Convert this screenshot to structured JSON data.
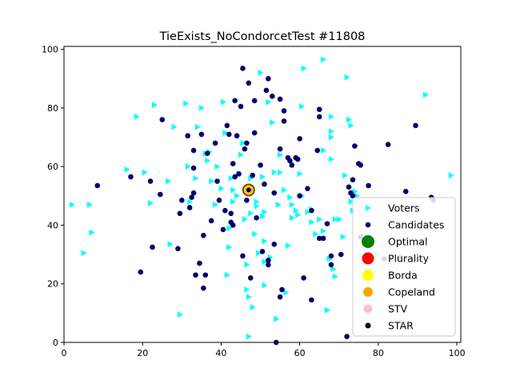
{
  "chart_data": {
    "type": "scatter",
    "title": "TieExists_NoCondorcetTest #11808",
    "xlabel": "",
    "ylabel": "",
    "xlim": [
      0,
      101
    ],
    "ylim": [
      0,
      101
    ],
    "xticks": [
      "0",
      "20",
      "40",
      "60",
      "80",
      "100"
    ],
    "yticks": [
      "0",
      "20",
      "40",
      "60",
      "80",
      "100"
    ],
    "grid": false,
    "legend_position": "lower-right",
    "series": [
      {
        "name": "Voters",
        "marker": "triangle-right",
        "color": "#00ffff",
        "points": [
          [
            2,
            47
          ],
          [
            5,
            30.5
          ],
          [
            6.5,
            47
          ],
          [
            7,
            37.5
          ],
          [
            16,
            59
          ],
          [
            18.5,
            77
          ],
          [
            20.5,
            58
          ],
          [
            22,
            47.5
          ],
          [
            23,
            81
          ],
          [
            26.5,
            55
          ],
          [
            27,
            33.5
          ],
          [
            28,
            73.5
          ],
          [
            29.5,
            9.5
          ],
          [
            31,
            81.5
          ],
          [
            31.5,
            60
          ],
          [
            32,
            48
          ],
          [
            33.5,
            56
          ],
          [
            34,
            73.5
          ],
          [
            35,
            80
          ],
          [
            36,
            64.5
          ],
          [
            36.5,
            62
          ],
          [
            37,
            65
          ],
          [
            37.5,
            55
          ],
          [
            38.5,
            47
          ],
          [
            39,
            60
          ],
          [
            40,
            52.5
          ],
          [
            40.5,
            82
          ],
          [
            41,
            71.5
          ],
          [
            41.5,
            23
          ],
          [
            42,
            39
          ],
          [
            42,
            32.5
          ],
          [
            42.5,
            56
          ],
          [
            43,
            52
          ],
          [
            43,
            48
          ],
          [
            44,
            50
          ],
          [
            44.5,
            57.5
          ],
          [
            45,
            64
          ],
          [
            45.5,
            68
          ],
          [
            46,
            42
          ],
          [
            46.5,
            26.5
          ],
          [
            46.5,
            18
          ],
          [
            47,
            15.5
          ],
          [
            47,
            2
          ],
          [
            47.5,
            56
          ],
          [
            47.5,
            44
          ],
          [
            48,
            12
          ],
          [
            48.5,
            37
          ],
          [
            49,
            48
          ],
          [
            49,
            46.5
          ],
          [
            49.5,
            30.5
          ],
          [
            50,
            92
          ],
          [
            50.5,
            56.5
          ],
          [
            50.5,
            43
          ],
          [
            51,
            34.5
          ],
          [
            51,
            27.5
          ],
          [
            51,
            19.5
          ],
          [
            51,
            44.5
          ],
          [
            52,
            82
          ],
          [
            52.5,
            29
          ],
          [
            53,
            75
          ],
          [
            53.5,
            58
          ],
          [
            54,
            8
          ],
          [
            54.5,
            47
          ],
          [
            55,
            64
          ],
          [
            55,
            58
          ],
          [
            56,
            52
          ],
          [
            56.5,
            17
          ],
          [
            57,
            33
          ],
          [
            57.5,
            49.5
          ],
          [
            58,
            47
          ],
          [
            58,
            42.5
          ],
          [
            59,
            45
          ],
          [
            59.5,
            43.5
          ],
          [
            60,
            57.5
          ],
          [
            60.5,
            50
          ],
          [
            60.5,
            80.5
          ],
          [
            61,
            93.5
          ],
          [
            62,
            44.5
          ],
          [
            63,
            45.5
          ],
          [
            63,
            41
          ],
          [
            64,
            37
          ],
          [
            65,
            42
          ],
          [
            66,
            96.5
          ],
          [
            66,
            65.5
          ],
          [
            66,
            38
          ],
          [
            67,
            11
          ],
          [
            67.5,
            28.5
          ],
          [
            68,
            77
          ],
          [
            68,
            72
          ],
          [
            68.5,
            25
          ],
          [
            68,
            70
          ],
          [
            68,
            62.5
          ],
          [
            69,
            22.5
          ],
          [
            69,
            42
          ],
          [
            70,
            42
          ],
          [
            71,
            36
          ],
          [
            71.5,
            57
          ],
          [
            72,
            90.5
          ],
          [
            72.5,
            76
          ],
          [
            73,
            74
          ],
          [
            73,
            48
          ],
          [
            73.5,
            45
          ],
          [
            74,
            51.5
          ],
          [
            74.5,
            50
          ],
          [
            78,
            30
          ],
          [
            79.5,
            30
          ],
          [
            86,
            35
          ],
          [
            92,
            84.5
          ],
          [
            98.5,
            57
          ]
        ]
      },
      {
        "name": "Candidates",
        "marker": "circle",
        "color": "#00006e",
        "points": [
          [
            8.5,
            53.5
          ],
          [
            17,
            56.5
          ],
          [
            19.5,
            24
          ],
          [
            22,
            55
          ],
          [
            22.5,
            32.5
          ],
          [
            24.5,
            50.5
          ],
          [
            25,
            76
          ],
          [
            29,
            32
          ],
          [
            29.5,
            44
          ],
          [
            30,
            48.5
          ],
          [
            31.5,
            70.5
          ],
          [
            32,
            46
          ],
          [
            32.5,
            49.5
          ],
          [
            33,
            51
          ],
          [
            33,
            59.5
          ],
          [
            33,
            65.5
          ],
          [
            33.5,
            23
          ],
          [
            34.5,
            27
          ],
          [
            35,
            71
          ],
          [
            35.5,
            18.5
          ],
          [
            35.5,
            36.5
          ],
          [
            36,
            23
          ],
          [
            36.5,
            64.5
          ],
          [
            37.5,
            41.5
          ],
          [
            38.5,
            68
          ],
          [
            39,
            55
          ],
          [
            39.5,
            48.5
          ],
          [
            40.5,
            38.5
          ],
          [
            41,
            45
          ],
          [
            41.5,
            74
          ],
          [
            42,
            71
          ],
          [
            42.5,
            44
          ],
          [
            42.5,
            41
          ],
          [
            43,
            40
          ],
          [
            43,
            61
          ],
          [
            43.5,
            82.5
          ],
          [
            43.5,
            56.5
          ],
          [
            44,
            70.5
          ],
          [
            44.5,
            57.5
          ],
          [
            45,
            80.5
          ],
          [
            45.5,
            93.5
          ],
          [
            45.5,
            29.5
          ],
          [
            46,
            66
          ],
          [
            46.5,
            68
          ],
          [
            46.5,
            48.5
          ],
          [
            47,
            88.5
          ],
          [
            47.5,
            22
          ],
          [
            48,
            57
          ],
          [
            48.5,
            71.5
          ],
          [
            48.5,
            82.5
          ],
          [
            49,
            42.5
          ],
          [
            50,
            60.5
          ],
          [
            50.5,
            31
          ],
          [
            51,
            54
          ],
          [
            51.5,
            86
          ],
          [
            52,
            90
          ],
          [
            52,
            28
          ],
          [
            52,
            26.5
          ],
          [
            53,
            84
          ],
          [
            53.5,
            33.5
          ],
          [
            53.5,
            51
          ],
          [
            54,
            0
          ],
          [
            55,
            66
          ],
          [
            55,
            15.5
          ],
          [
            55,
            83
          ],
          [
            55.5,
            18
          ],
          [
            56,
            79
          ],
          [
            56,
            75.5
          ],
          [
            57,
            63
          ],
          [
            57.5,
            62
          ],
          [
            58,
            60.5
          ],
          [
            59,
            63
          ],
          [
            59.5,
            62.5
          ],
          [
            60,
            69.5
          ],
          [
            60,
            50
          ],
          [
            61,
            22
          ],
          [
            62,
            52.5
          ],
          [
            63,
            14.5
          ],
          [
            63,
            45
          ],
          [
            64.5,
            65.5
          ],
          [
            65,
            79.5
          ],
          [
            65,
            77
          ],
          [
            65,
            35.5
          ],
          [
            66,
            35.5
          ],
          [
            67,
            40.5
          ],
          [
            68,
            26.5
          ],
          [
            68,
            29.5
          ],
          [
            70.5,
            30
          ],
          [
            72,
            2
          ],
          [
            72.5,
            53
          ],
          [
            73,
            51
          ],
          [
            73.5,
            50
          ],
          [
            73.5,
            55.5
          ],
          [
            74,
            67
          ],
          [
            75,
            61
          ],
          [
            75.5,
            60.5
          ],
          [
            75.5,
            36
          ],
          [
            77.5,
            53.5
          ],
          [
            81.5,
            28.5
          ],
          [
            82.5,
            67.5
          ],
          [
            85.5,
            29
          ],
          [
            87,
            51.5
          ],
          [
            89.5,
            74
          ],
          [
            93.5,
            49.5
          ],
          [
            94,
            48.5
          ]
        ]
      },
      {
        "name": "Optimal",
        "marker": "circle",
        "color": "#008000",
        "points": [
          [
            47,
            52
          ]
        ]
      },
      {
        "name": "Plurality",
        "marker": "circle",
        "color": "#ff0000",
        "points": [
          [
            47,
            52
          ]
        ]
      },
      {
        "name": "Borda",
        "marker": "circle",
        "color": "#ffff00",
        "points": [
          [
            47,
            52
          ]
        ]
      },
      {
        "name": "Copeland",
        "marker": "circle",
        "color": "#ffa500",
        "points": [
          [
            47,
            52
          ]
        ]
      },
      {
        "name": "STV",
        "marker": "circle",
        "color": "#ffc0cb",
        "points": [
          [
            47,
            52
          ]
        ]
      },
      {
        "name": "STAR",
        "marker": "circle",
        "color": "#000000",
        "points": [
          [
            47,
            52
          ]
        ]
      }
    ]
  }
}
